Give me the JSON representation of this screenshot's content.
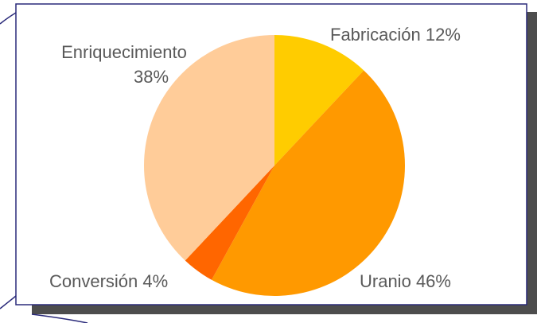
{
  "chart_data": {
    "type": "pie",
    "categories": [
      "Fabricación",
      "Uranio",
      "Conversión",
      "Enriquecimiento"
    ],
    "values": [
      12,
      46,
      4,
      38
    ],
    "value_labels": [
      "12%",
      "46%",
      "4%",
      "38%"
    ],
    "colors": [
      "#ffcc00",
      "#ff9900",
      "#ff6600",
      "#ffcc99"
    ]
  }
}
